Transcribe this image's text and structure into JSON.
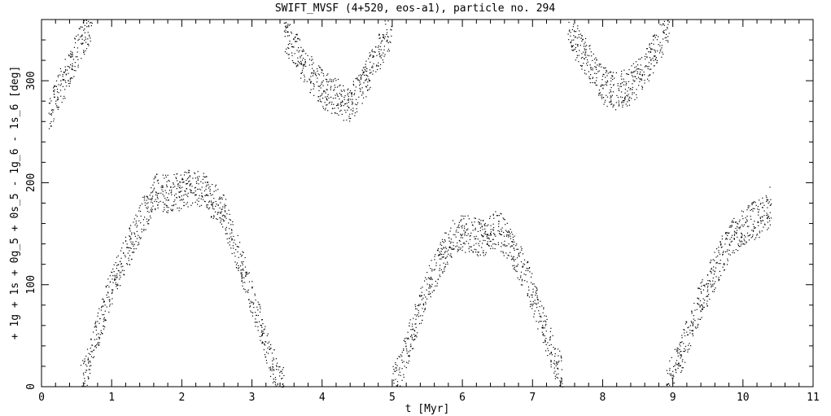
{
  "chart_data": {
    "type": "scatter",
    "title": "SWIFT_MVSF (4+520, eos-a1), particle no. 294",
    "xlabel": "t [Myr]",
    "ylabel": "+ 1g + 1s + 0g_5 + 0s_5 - 1g_6 - 1s_6 [deg]",
    "xlim": [
      0,
      11
    ],
    "ylim": [
      0,
      360
    ],
    "x_ticks": [
      0,
      1,
      2,
      3,
      4,
      5,
      6,
      7,
      8,
      9,
      10,
      11
    ],
    "y_ticks": [
      0,
      100,
      200,
      300
    ],
    "x_minor_step": 0.2,
    "y_minor_step": 20,
    "grid": false,
    "marker_color": "#000000",
    "series": [
      {
        "points": [
          [
            0.1,
            262
          ],
          [
            0.2,
            285
          ],
          [
            0.35,
            305
          ],
          [
            0.5,
            330
          ],
          [
            0.65,
            352
          ],
          [
            0.72,
            360
          ],
          [
            0.55,
            2
          ],
          [
            0.7,
            30
          ],
          [
            0.85,
            68
          ],
          [
            1.0,
            100
          ],
          [
            1.2,
            130
          ],
          [
            1.4,
            162
          ],
          [
            1.6,
            190
          ],
          [
            1.8,
            190
          ],
          [
            2.0,
            192
          ],
          [
            2.2,
            196
          ],
          [
            2.4,
            186
          ],
          [
            2.6,
            170
          ],
          [
            2.8,
            130
          ],
          [
            3.0,
            88
          ],
          [
            3.2,
            40
          ],
          [
            3.35,
            12
          ],
          [
            3.45,
            2
          ],
          [
            3.45,
            350
          ],
          [
            3.6,
            332
          ],
          [
            3.8,
            310
          ],
          [
            4.0,
            292
          ],
          [
            4.2,
            285
          ],
          [
            4.4,
            276
          ],
          [
            4.6,
            300
          ],
          [
            4.8,
            328
          ],
          [
            5.0,
            355
          ],
          [
            5.0,
            2
          ],
          [
            5.1,
            15
          ],
          [
            5.3,
            58
          ],
          [
            5.5,
            98
          ],
          [
            5.7,
            128
          ],
          [
            5.9,
            152
          ],
          [
            6.1,
            150
          ],
          [
            6.3,
            146
          ],
          [
            6.5,
            156
          ],
          [
            6.7,
            136
          ],
          [
            6.9,
            110
          ],
          [
            7.1,
            70
          ],
          [
            7.3,
            30
          ],
          [
            7.45,
            5
          ],
          [
            7.5,
            355
          ],
          [
            7.6,
            340
          ],
          [
            7.8,
            318
          ],
          [
            8.0,
            296
          ],
          [
            8.2,
            290
          ],
          [
            8.4,
            296
          ],
          [
            8.6,
            310
          ],
          [
            8.8,
            338
          ],
          [
            8.95,
            358
          ],
          [
            8.9,
            2
          ],
          [
            9.1,
            30
          ],
          [
            9.3,
            70
          ],
          [
            9.5,
            100
          ],
          [
            9.7,
            130
          ],
          [
            9.9,
            152
          ],
          [
            10.1,
            162
          ],
          [
            10.3,
            168
          ],
          [
            10.4,
            180
          ]
        ],
        "band_width_deg": 38
      }
    ]
  }
}
